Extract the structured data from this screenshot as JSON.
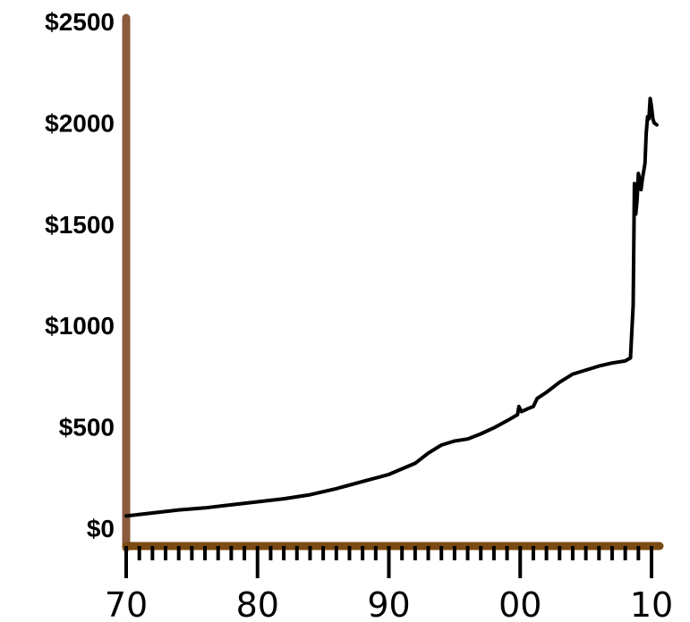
{
  "chart_data": {
    "type": "line",
    "title": "",
    "xlabel": "",
    "ylabel": "",
    "xlim": [
      1970,
      2010.7
    ],
    "ylim": [
      -100,
      2500
    ],
    "y_ticks": [
      0,
      500,
      1000,
      1500,
      2000,
      2500
    ],
    "y_tick_labels": [
      "$0",
      "$500",
      "$1000",
      "$1500",
      "$2000",
      "$2500"
    ],
    "x_ticks": [
      1970,
      1980,
      1990,
      2000,
      2010
    ],
    "x_tick_labels": [
      "70",
      "80",
      "90",
      "00",
      "10"
    ],
    "grid": false,
    "legend": "none",
    "colors": {
      "y_axis": "#8B5A3C",
      "x_axis": "#7A4A12",
      "line": "#000000"
    },
    "series": [
      {
        "x": [
          1970,
          1972,
          1974,
          1976,
          1978,
          1980,
          1982,
          1984,
          1986,
          1988,
          1990,
          1992,
          1993,
          1994,
          1995,
          1996,
          1997,
          1998,
          1999,
          1999.8,
          1999.9,
          2000.1,
          2000.6,
          2001,
          2001.3,
          2002,
          2003,
          2004,
          2005,
          2006,
          2007,
          2008,
          2008.4,
          2008.6,
          2008.7,
          2008.8,
          2008.9,
          2009.0,
          2009.1,
          2009.2,
          2009.3,
          2009.5,
          2009.6,
          2009.7,
          2009.8,
          2009.9,
          2010.0,
          2010.1,
          2010.2,
          2010.4
        ],
        "y": [
          60,
          75,
          90,
          100,
          115,
          130,
          145,
          165,
          195,
          230,
          265,
          320,
          370,
          410,
          430,
          440,
          465,
          495,
          530,
          560,
          600,
          575,
          590,
          600,
          640,
          670,
          720,
          760,
          780,
          800,
          815,
          825,
          840,
          1100,
          1700,
          1550,
          1620,
          1750,
          1720,
          1670,
          1720,
          1800,
          1950,
          2030,
          2020,
          2120,
          2080,
          2020,
          2000,
          1990
        ]
      }
    ]
  }
}
